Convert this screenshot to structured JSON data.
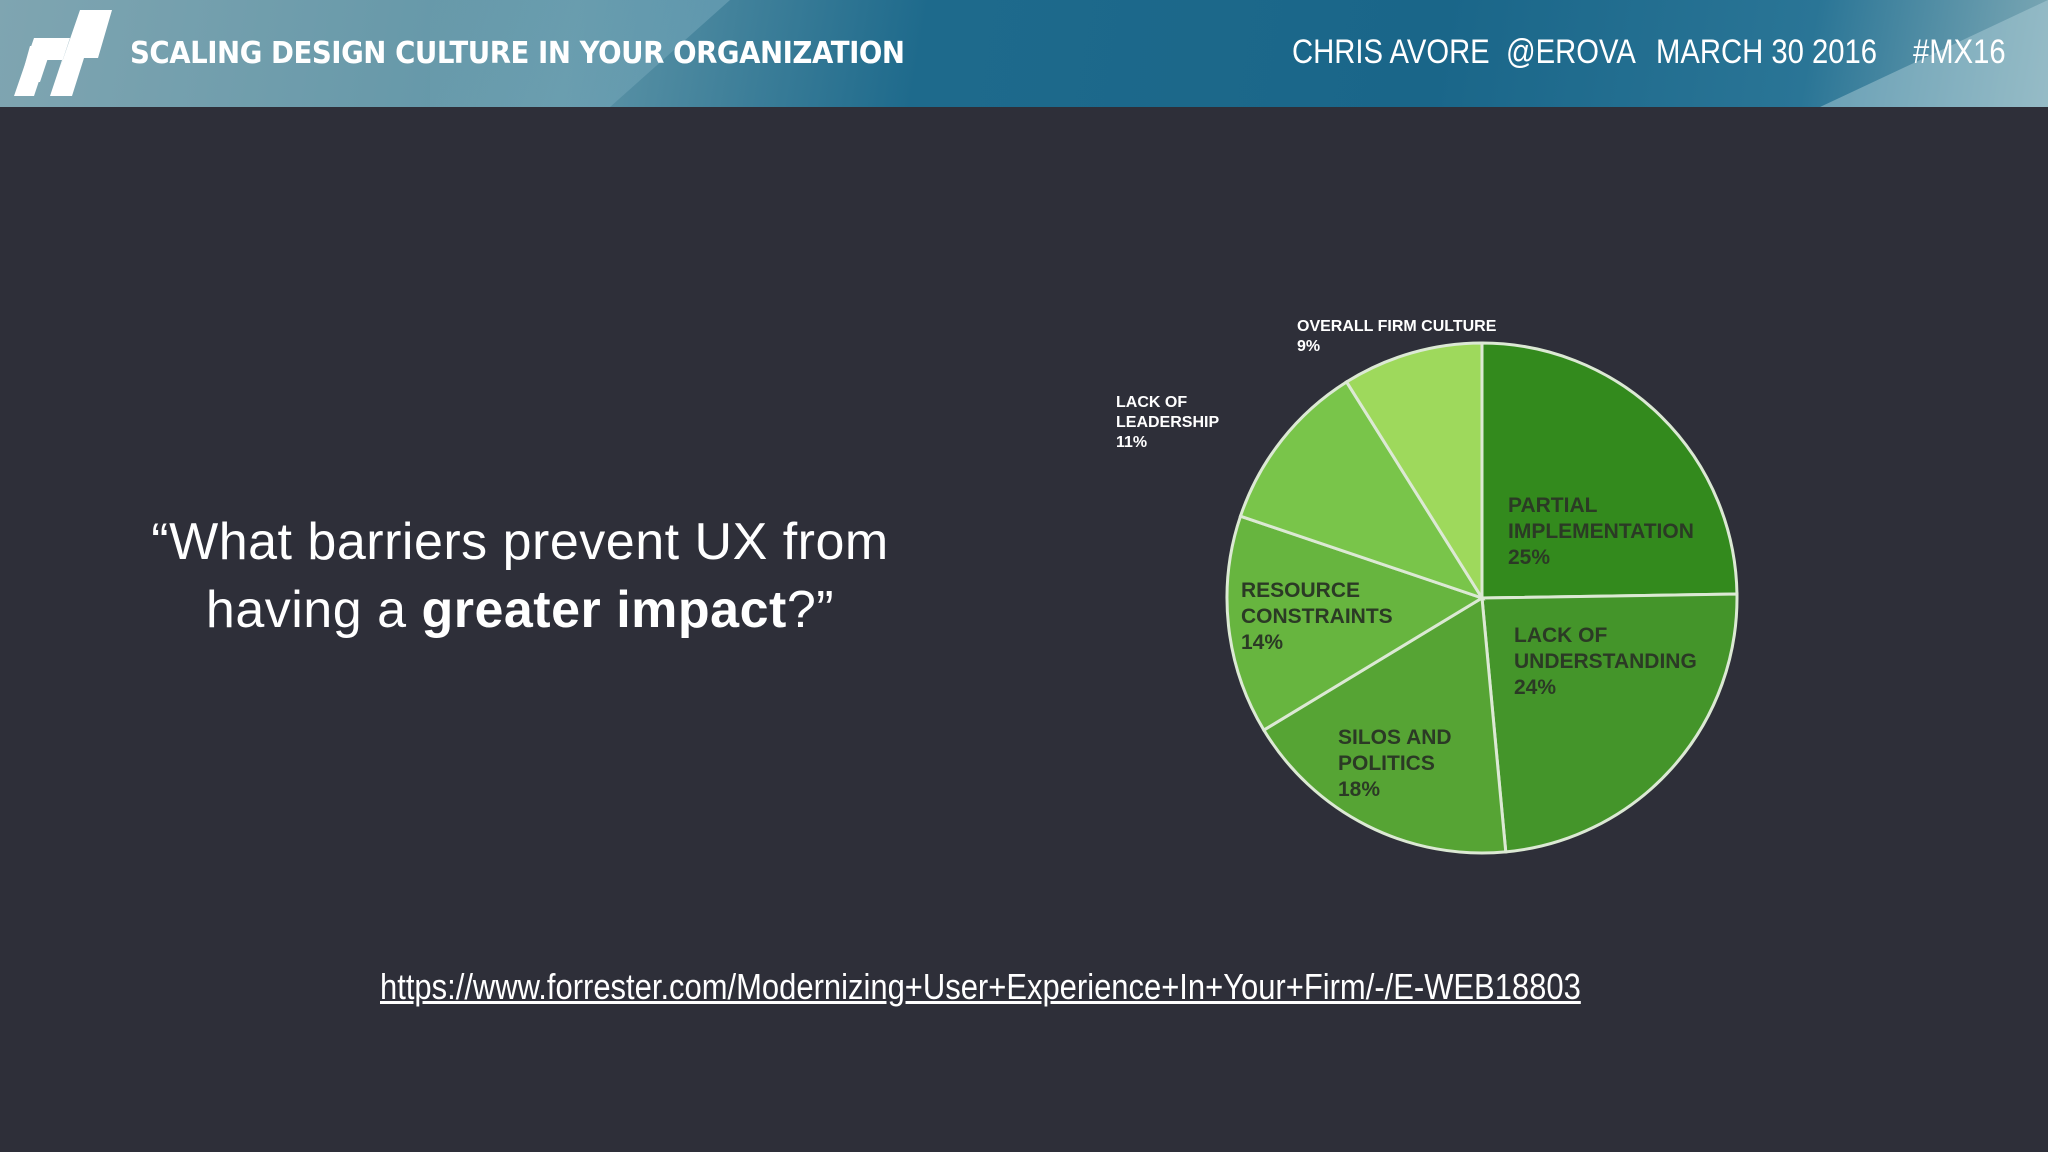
{
  "header": {
    "talk_title": "SCALING DESIGN CULTURE IN YOUR ORGANIZATION",
    "speaker": "CHRIS AVORE",
    "handle": "@EROVA",
    "date": "MARCH 30 2016",
    "hashtag": "#MX16",
    "logo_icon": "mx-logo-icon"
  },
  "question": {
    "open_quote": "“",
    "line1": "What barriers prevent UX from",
    "line2_prefix": "having a ",
    "line2_bold": "greater impact",
    "line2_suffix": "?”"
  },
  "source_url": "https://www.forrester.com/Modernizing+User+Experience+In+Your+Firm/-/E-WEB18803",
  "chart_data": {
    "type": "pie",
    "title": "",
    "slices": [
      {
        "label": [
          "PARTIAL",
          "IMPLEMENTATION"
        ],
        "value": 25,
        "value_label": "25%",
        "color": "#338a1d",
        "label_pos": "inside"
      },
      {
        "label": [
          "LACK OF",
          "UNDERSTANDING"
        ],
        "value": 24,
        "value_label": "24%",
        "color": "#44952a",
        "label_pos": "inside"
      },
      {
        "label": [
          "SILOS AND",
          "POLITICS"
        ],
        "value": 18,
        "value_label": "18%",
        "color": "#56a434",
        "label_pos": "inside"
      },
      {
        "label": [
          "RESOURCE",
          "CONSTRAINTS"
        ],
        "value": 14,
        "value_label": "14%",
        "color": "#67b53f",
        "label_pos": "inside"
      },
      {
        "label": [
          "LACK OF",
          "LEADERSHIP"
        ],
        "value": 11,
        "value_label": "11%",
        "color": "#79c54a",
        "label_pos": "outside"
      },
      {
        "label": [
          "OVERALL FIRM CULTURE"
        ],
        "value": 9,
        "value_label": "9%",
        "color": "#9ed95c",
        "label_pos": "outside"
      }
    ],
    "stroke_color": "#dce9d4"
  }
}
